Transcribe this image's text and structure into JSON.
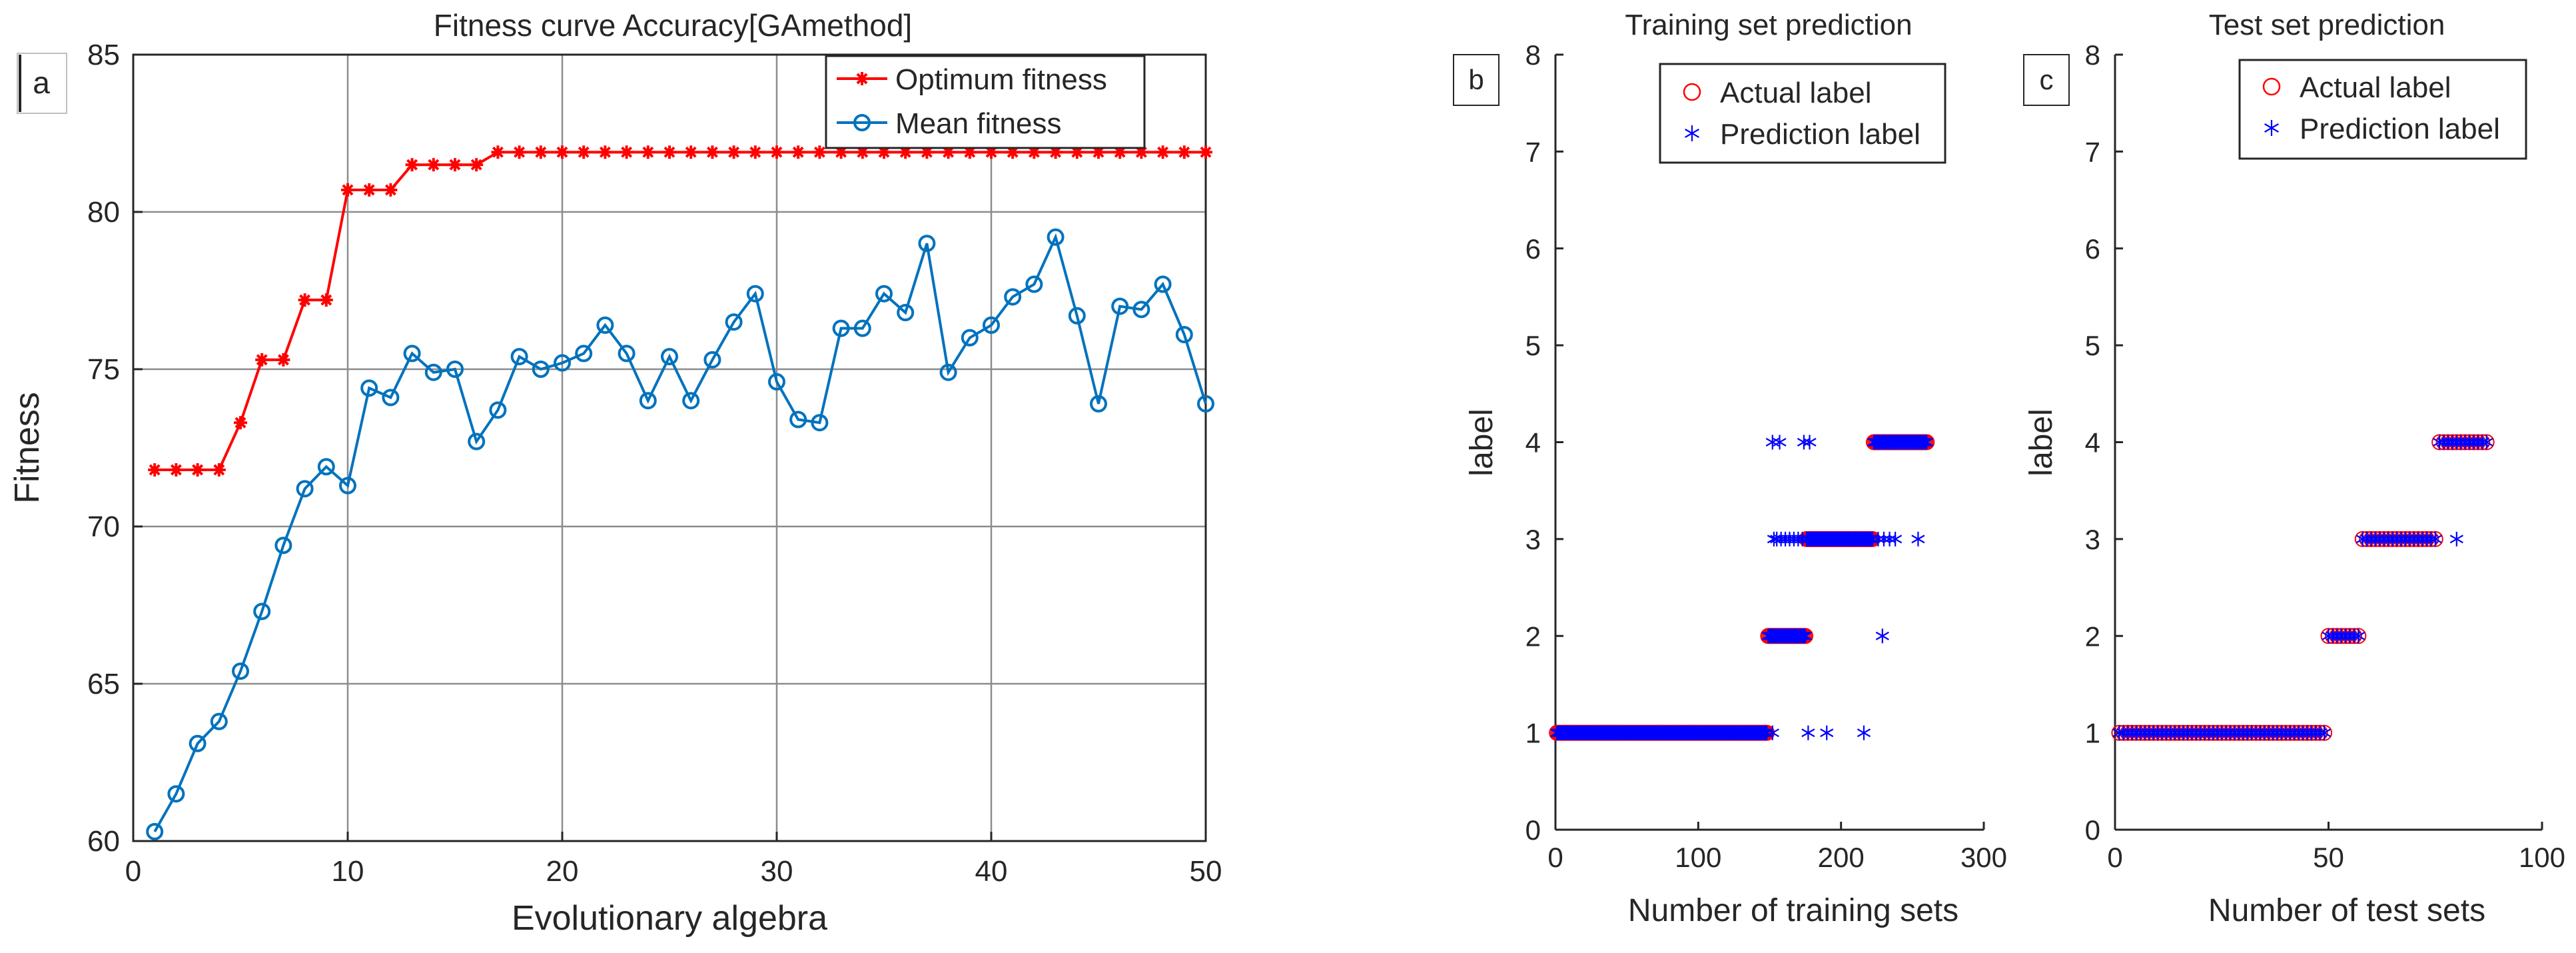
{
  "colors": {
    "optimum": "#ff0000",
    "mean": "#0072bd",
    "actual": "#ff0000",
    "prediction": "#0000ff",
    "axis": "#262626",
    "grid": "#8c8c8c"
  },
  "chart_data": [
    {
      "panel_label": "a",
      "type": "line",
      "title": "Fitness curve Accuracy[GAmethod]",
      "xlabel": "Evolutionary algebra",
      "ylabel": "Fitness",
      "xlim": [
        0,
        50
      ],
      "ylim": [
        60,
        85
      ],
      "xticks": [
        0,
        10,
        20,
        30,
        40,
        50
      ],
      "yticks": [
        60,
        65,
        70,
        75,
        80,
        85
      ],
      "grid": true,
      "legend": "top-right",
      "x": [
        1,
        2,
        3,
        4,
        5,
        6,
        7,
        8,
        9,
        10,
        11,
        12,
        13,
        14,
        15,
        16,
        17,
        18,
        19,
        20,
        21,
        22,
        23,
        24,
        25,
        26,
        27,
        28,
        29,
        30,
        31,
        32,
        33,
        34,
        35,
        36,
        37,
        38,
        39,
        40,
        41,
        42,
        43,
        44,
        45,
        46,
        47,
        48,
        49,
        50
      ],
      "series": [
        {
          "name": "Optimum fitness",
          "marker": "star",
          "values": [
            71.8,
            71.8,
            71.8,
            71.8,
            73.3,
            75.3,
            75.3,
            77.2,
            77.2,
            80.7,
            80.7,
            80.7,
            81.5,
            81.5,
            81.5,
            81.5,
            81.9,
            81.9,
            81.9,
            81.9,
            81.9,
            81.9,
            81.9,
            81.9,
            81.9,
            81.9,
            81.9,
            81.9,
            81.9,
            81.9,
            81.9,
            81.9,
            81.9,
            81.9,
            81.9,
            81.9,
            81.9,
            81.9,
            81.9,
            81.9,
            81.9,
            81.9,
            81.9,
            81.9,
            81.9,
            81.9,
            81.9,
            81.9,
            81.9,
            81.9
          ]
        },
        {
          "name": "Mean fitness",
          "marker": "circle",
          "values": [
            60.3,
            61.5,
            63.1,
            63.8,
            65.4,
            67.3,
            69.4,
            71.2,
            71.9,
            71.3,
            74.4,
            74.1,
            75.5,
            74.9,
            75.0,
            72.7,
            73.7,
            75.4,
            75.0,
            75.2,
            75.5,
            76.4,
            75.5,
            74.0,
            75.4,
            74.0,
            75.3,
            76.5,
            77.4,
            74.6,
            73.4,
            73.3,
            76.3,
            76.3,
            77.4,
            76.8,
            79.0,
            74.9,
            76.0,
            76.4,
            77.3,
            77.7,
            79.2,
            76.7,
            73.9,
            77.0,
            76.9,
            77.7,
            76.1,
            73.9
          ]
        }
      ]
    },
    {
      "panel_label": "b",
      "type": "scatter",
      "title": "Training set prediction",
      "xlabel": "Number of training sets",
      "ylabel": "label",
      "xlim": [
        0,
        300
      ],
      "ylim": [
        0,
        8
      ],
      "xticks": [
        0,
        100,
        200,
        300
      ],
      "yticks": [
        0,
        1,
        2,
        3,
        4,
        5,
        6,
        7,
        8
      ],
      "grid": false,
      "legend": "top-right",
      "series": [
        {
          "name": "Actual label",
          "marker": "circle",
          "segments": [
            {
              "from": 1,
              "to": 148,
              "label": 1
            },
            {
              "from": 149,
              "to": 175,
              "label": 2
            },
            {
              "from": 176,
              "to": 222,
              "label": 3
            },
            {
              "from": 223,
              "to": 260,
              "label": 4
            }
          ]
        },
        {
          "name": "Prediction label",
          "marker": "asterisk",
          "segments": [
            {
              "from": 1,
              "to": 148,
              "label": 1
            },
            {
              "from": 149,
              "to": 175,
              "label": 2
            },
            {
              "from": 176,
              "to": 222,
              "label": 3
            },
            {
              "from": 223,
              "to": 260,
              "label": 4
            }
          ],
          "outliers": [
            {
              "x": 152,
              "y": 1
            },
            {
              "x": 177,
              "y": 1
            },
            {
              "x": 190,
              "y": 1
            },
            {
              "x": 216,
              "y": 1
            },
            {
              "x": 229,
              "y": 2
            },
            {
              "x": 153,
              "y": 3
            },
            {
              "x": 155,
              "y": 3
            },
            {
              "x": 158,
              "y": 3
            },
            {
              "x": 161,
              "y": 3
            },
            {
              "x": 164,
              "y": 3
            },
            {
              "x": 167,
              "y": 3
            },
            {
              "x": 170,
              "y": 3
            },
            {
              "x": 173,
              "y": 3
            },
            {
              "x": 226,
              "y": 3
            },
            {
              "x": 230,
              "y": 3
            },
            {
              "x": 234,
              "y": 3
            },
            {
              "x": 238,
              "y": 3
            },
            {
              "x": 254,
              "y": 3
            },
            {
              "x": 152,
              "y": 4
            },
            {
              "x": 157,
              "y": 4
            },
            {
              "x": 174,
              "y": 4
            },
            {
              "x": 178,
              "y": 4
            }
          ]
        }
      ]
    },
    {
      "panel_label": "c",
      "type": "scatter",
      "title": "Test set prediction",
      "xlabel": "Number of test sets",
      "ylabel": "label",
      "xlim": [
        0,
        100
      ],
      "ylim": [
        0,
        8
      ],
      "xticks": [
        0,
        50,
        100
      ],
      "yticks": [
        0,
        1,
        2,
        3,
        4,
        5,
        6,
        7,
        8
      ],
      "grid": false,
      "legend": "top-right",
      "series": [
        {
          "name": "Actual label",
          "marker": "circle",
          "segments": [
            {
              "from": 1,
              "to": 49,
              "label": 1
            },
            {
              "from": 50,
              "to": 57,
              "label": 2
            },
            {
              "from": 58,
              "to": 75,
              "label": 3
            },
            {
              "from": 76,
              "to": 87,
              "label": 4
            }
          ]
        },
        {
          "name": "Prediction label",
          "marker": "asterisk",
          "segments": [
            {
              "from": 1,
              "to": 49,
              "label": 1
            },
            {
              "from": 50,
              "to": 57,
              "label": 2
            },
            {
              "from": 58,
              "to": 75,
              "label": 3
            },
            {
              "from": 76,
              "to": 87,
              "label": 4
            }
          ],
          "outliers": [
            {
              "x": 80,
              "y": 3
            }
          ]
        }
      ]
    }
  ]
}
